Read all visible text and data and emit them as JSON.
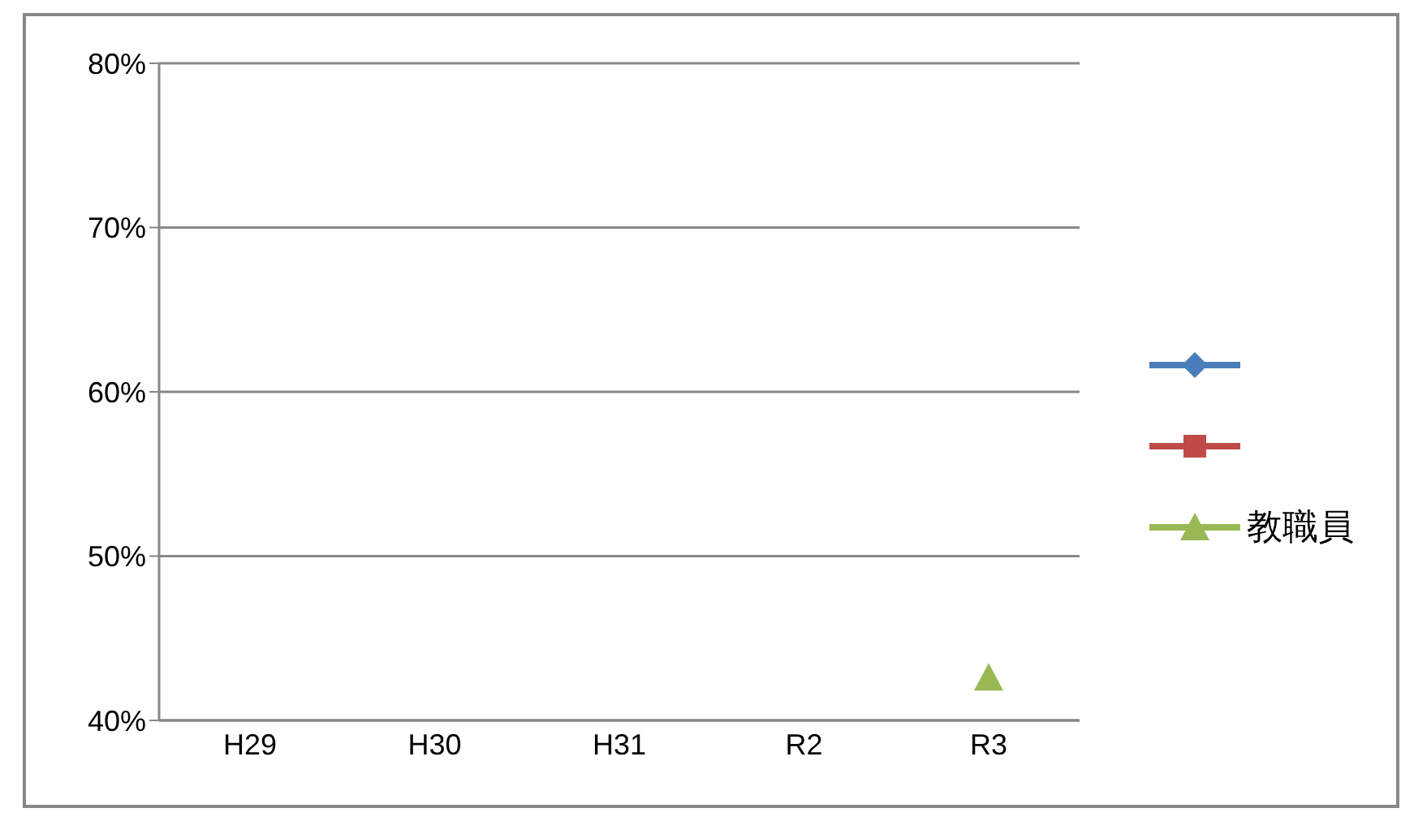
{
  "chart_data": {
    "type": "line",
    "categories": [
      "H29",
      "H30",
      "H31",
      "R2",
      "R3"
    ],
    "series": [
      {
        "color": "#4a7ebb",
        "marker": "diamond",
        "values": [
          null,
          null,
          null,
          null,
          null
        ]
      },
      {
        "color": "#be4b48",
        "marker": "square",
        "values": [
          null,
          null,
          null,
          null,
          null
        ]
      },
      {
        "name": "教職員",
        "color": "#98b954",
        "marker": "triangle",
        "values": [
          null,
          null,
          null,
          null,
          42.6
        ]
      }
    ],
    "ylim": [
      40,
      80
    ],
    "yticks": [
      {
        "value": 40,
        "label": "40%"
      },
      {
        "value": 50,
        "label": "50%"
      },
      {
        "value": 60,
        "label": "60%"
      },
      {
        "value": 70,
        "label": "70%"
      },
      {
        "value": 80,
        "label": "80%"
      }
    ],
    "grid": "y",
    "legend": "right"
  }
}
